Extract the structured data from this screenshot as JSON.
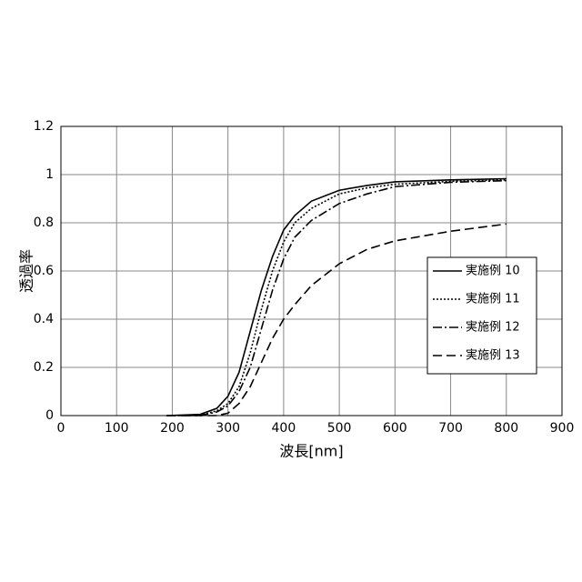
{
  "chart_data": {
    "type": "line",
    "xlabel": "波長[nm]",
    "ylabel": "透過率",
    "x": [
      190,
      250,
      280,
      300,
      320,
      340,
      360,
      380,
      400,
      420,
      450,
      500,
      550,
      600,
      700,
      800
    ],
    "series": [
      {
        "name": "実施例 10",
        "color": "#000000",
        "dash": "solid",
        "values": [
          0,
          0.005,
          0.03,
          0.08,
          0.18,
          0.35,
          0.52,
          0.66,
          0.77,
          0.83,
          0.89,
          0.935,
          0.955,
          0.97,
          0.978,
          0.983
        ]
      },
      {
        "name": "実施例 11",
        "color": "#000000",
        "dash": "dotted",
        "values": [
          0,
          0,
          0.02,
          0.05,
          0.12,
          0.26,
          0.44,
          0.6,
          0.72,
          0.8,
          0.86,
          0.92,
          0.945,
          0.96,
          0.972,
          0.978
        ]
      },
      {
        "name": "実施例 12",
        "color": "#000000",
        "dash": "dashdot",
        "values": [
          0,
          0,
          0.015,
          0.04,
          0.1,
          0.2,
          0.36,
          0.52,
          0.65,
          0.74,
          0.81,
          0.88,
          0.92,
          0.95,
          0.968,
          0.975
        ]
      },
      {
        "name": "実施例 13",
        "color": "#000000",
        "dash": "dashed",
        "values": [
          0,
          0,
          0,
          0.01,
          0.05,
          0.12,
          0.22,
          0.32,
          0.4,
          0.46,
          0.54,
          0.63,
          0.69,
          0.725,
          0.765,
          0.795
        ]
      }
    ],
    "xlim": [
      0,
      900
    ],
    "xticks": [
      0,
      100,
      200,
      300,
      400,
      500,
      600,
      700,
      800,
      900
    ],
    "ylim": [
      0,
      1.2
    ],
    "yticks": [
      0,
      0.2,
      0.4,
      0.6,
      0.8,
      1,
      1.2
    ],
    "grid": true,
    "legend": "right"
  }
}
